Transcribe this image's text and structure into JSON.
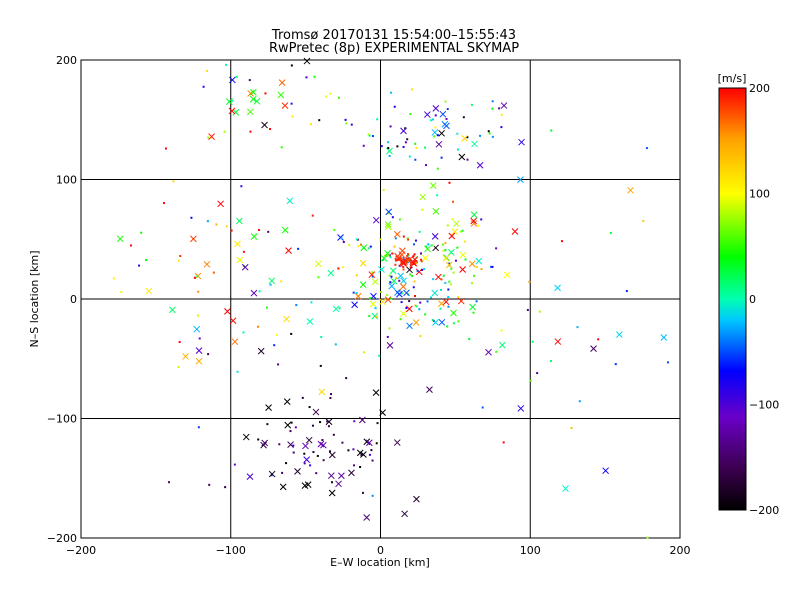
{
  "chart_data": {
    "type": "scatter",
    "title": "Tromsø 20170131 15:54:00–15:55:43",
    "subtitle": "RwPretec (8p) EXPERIMENTAL SKYMAP",
    "xlabel": "E–W location [km]",
    "ylabel": "N–S location [km]",
    "xlim": [
      -200,
      200
    ],
    "ylim": [
      -200,
      200
    ],
    "xticks": [
      -200,
      -100,
      0,
      100,
      200
    ],
    "yticks": [
      -200,
      -100,
      0,
      100,
      200
    ],
    "xtick_labels": [
      "−200",
      "−100",
      "0",
      "100",
      "200"
    ],
    "ytick_labels": [
      "−200",
      "−100",
      "0",
      "100",
      "200"
    ],
    "grid": true,
    "colorbar": {
      "label": "[m/s]",
      "range": [
        -200,
        200
      ],
      "ticks": [
        200,
        100,
        0,
        -100,
        -200
      ],
      "tick_labels": [
        "200",
        "100",
        "0",
        "−100",
        "−200"
      ],
      "colormap": "rainbow (black–purple–blue–cyan–green–yellow–red)"
    },
    "markers": {
      "x": "cross",
      "dot": "small dot"
    },
    "clusters": [
      {
        "region": "north arc",
        "x_range": [
          -20,
          80
        ],
        "y_range": [
          100,
          170
        ],
        "velocity": "mixed cyan/blue/black",
        "count": 70
      },
      {
        "region": "central core",
        "x_range": [
          -40,
          80
        ],
        "y_range": [
          -40,
          70
        ],
        "velocity": "mixed green/cyan/red",
        "count": 220
      },
      {
        "region": "red hotspot",
        "x": 15,
        "y": 30,
        "velocity": 190
      },
      {
        "region": "southwest",
        "x_range": [
          -110,
          10
        ],
        "y_range": [
          -180,
          -60
        ],
        "velocity": "negative (black/purple)",
        "count": 90
      },
      {
        "region": "west",
        "x_range": [
          -180,
          -60
        ],
        "y_range": [
          -60,
          100
        ],
        "velocity": "mixed red/green/black",
        "count": 70
      },
      {
        "region": "east sparse",
        "x_range": [
          80,
          200
        ],
        "y_range": [
          -200,
          150
        ],
        "velocity": "mixed",
        "count": 40
      },
      {
        "region": "northwest",
        "x_range": [
          -120,
          -20
        ],
        "y_range": [
          140,
          200
        ],
        "velocity": "mixed",
        "count": 40
      }
    ]
  }
}
